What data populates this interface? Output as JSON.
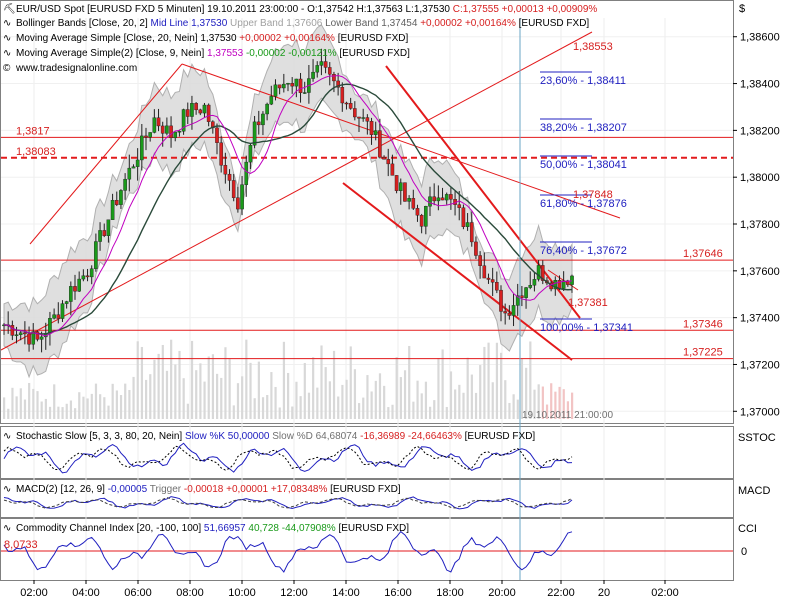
{
  "header": {
    "symbol_line": "EUR/USD Spot [EURUSD FXD  5 Minuten] 19.10.2011 23:00:00 - O:1,37542 H:1,37563 L:1,37530 ",
    "symbol_change": "C:1,37555 +0,00013 +0,00909%",
    "bollinger_a": "Bollinger Bands [Close, 20, 2] ",
    "bollinger_mid": "Mid Line 1,37530 ",
    "bollinger_upper": "Upper Band 1,37606 ",
    "bollinger_lower": "Lower Band 1,37454 ",
    "bollinger_change": "+0,00002 +0,00164% ",
    "bollinger_tail": "[EURUSD FXD]",
    "ma1_a": "Moving Average Simple [Close, 20, Nein] ",
    "ma1_b": "1,37530 ",
    "ma1_c": "+0,00002 +0,00164% ",
    "ma1_d": "[EURUSD FXD]",
    "ma2_a": "Moving Average Simple(2) [Close, 9, Nein] ",
    "ma2_b": "1,37553 ",
    "ma2_c": "-0,00002 -0,00121% ",
    "ma2_d": "[EURUSD FXD]",
    "website": "www.tradesignalonline.com",
    "currency_symbol": "$"
  },
  "chart_data": [
    {
      "type": "candlestick",
      "panel": "price",
      "x_ticks": [
        "02:00",
        "04:00",
        "06:00",
        "08:00",
        "10:00",
        "12:00",
        "14:00",
        "16:00",
        "18:00",
        "20:00",
        "22:00",
        "20",
        "02:00"
      ],
      "y_ticks": [
        "1,38600",
        "1,38400",
        "1,38200",
        "1,38000",
        "1,37800",
        "1,37600",
        "1,37400",
        "1,37200",
        "1,37000"
      ],
      "ylim": [
        1.3695,
        1.3868
      ],
      "close_path": [
        [
          0,
          1.3737
        ],
        [
          4,
          1.3734
        ],
        [
          8,
          1.373
        ],
        [
          12,
          1.374
        ],
        [
          16,
          1.3752
        ],
        [
          20,
          1.376
        ],
        [
          24,
          1.3778
        ],
        [
          28,
          1.3795
        ],
        [
          32,
          1.381
        ],
        [
          36,
          1.3825
        ],
        [
          40,
          1.3818
        ],
        [
          44,
          1.3828
        ],
        [
          48,
          1.383
        ],
        [
          52,
          1.3808
        ],
        [
          56,
          1.379
        ],
        [
          60,
          1.382
        ],
        [
          64,
          1.3835
        ],
        [
          68,
          1.3842
        ],
        [
          72,
          1.3838
        ],
        [
          76,
          1.3846
        ],
        [
          80,
          1.3838
        ],
        [
          84,
          1.3828
        ],
        [
          88,
          1.382
        ],
        [
          92,
          1.3805
        ],
        [
          96,
          1.379
        ],
        [
          100,
          1.3782
        ],
        [
          104,
          1.3795
        ],
        [
          108,
          1.3787
        ],
        [
          112,
          1.3775
        ],
        [
          116,
          1.3756
        ],
        [
          120,
          1.3742
        ],
        [
          124,
          1.3752
        ],
        [
          128,
          1.376
        ],
        [
          132,
          1.3755
        ],
        [
          136,
          1.3758
        ]
      ],
      "horizontal_lines": [
        {
          "value": 1.3817,
          "label": "1,3817",
          "side": "left"
        },
        {
          "value": 1.38083,
          "label": "1,38083",
          "side": "left",
          "style": "dashed"
        },
        {
          "value": 1.37646,
          "label": "1,37646",
          "side": "right"
        },
        {
          "value": 1.37346,
          "label": "1,37346",
          "side": "right"
        },
        {
          "value": 1.37225,
          "label": "1,37225",
          "side": "right"
        }
      ],
      "fibonacci": [
        {
          "label": "1,38553"
        },
        {
          "label": "23,60% - 1,38411"
        },
        {
          "label": "38,20% - 1,38207"
        },
        {
          "label": "50,00% - 1,38041"
        },
        {
          "label": "61,80% - 1,37876"
        },
        {
          "label": "1,37848"
        },
        {
          "label": "76,40% - 1,37672"
        },
        {
          "label": "1,37381"
        },
        {
          "label": "100,00% - 1,37341"
        }
      ],
      "cursor_label": "19.10.2011 21:00:00"
    },
    {
      "type": "line",
      "panel": "stochastic",
      "legend": {
        "a": "Stochastic Slow [5, 3, 3, 80, 20, Nein] ",
        "b": "Slow %K 50,00000 ",
        "c": "Slow %D 64,68074 ",
        "d": "-16,36989 -24,66463% ",
        "e": "[EURUSD FXD]"
      },
      "axis_label": "SSTOC"
    },
    {
      "type": "line",
      "panel": "macd",
      "legend": {
        "a": "MACD(2) [12, 26, 9] ",
        "b": "-0,00005 ",
        "c": "Trigger ",
        "d": "-0,00018 +0,00001 +17,08348% ",
        "e": "[EURUSD FXD]"
      },
      "axis_label": "MACD"
    },
    {
      "type": "line",
      "panel": "cci",
      "legend": {
        "a": "Commodity Channel Index [20, -100, 100] ",
        "b": "51,66957 ",
        "c": "40,728 -44,07908% ",
        "d": "[EURUSD FXD]"
      },
      "axis_label": "CCI",
      "zero_label": "0",
      "left_value": "8,0733"
    }
  ]
}
